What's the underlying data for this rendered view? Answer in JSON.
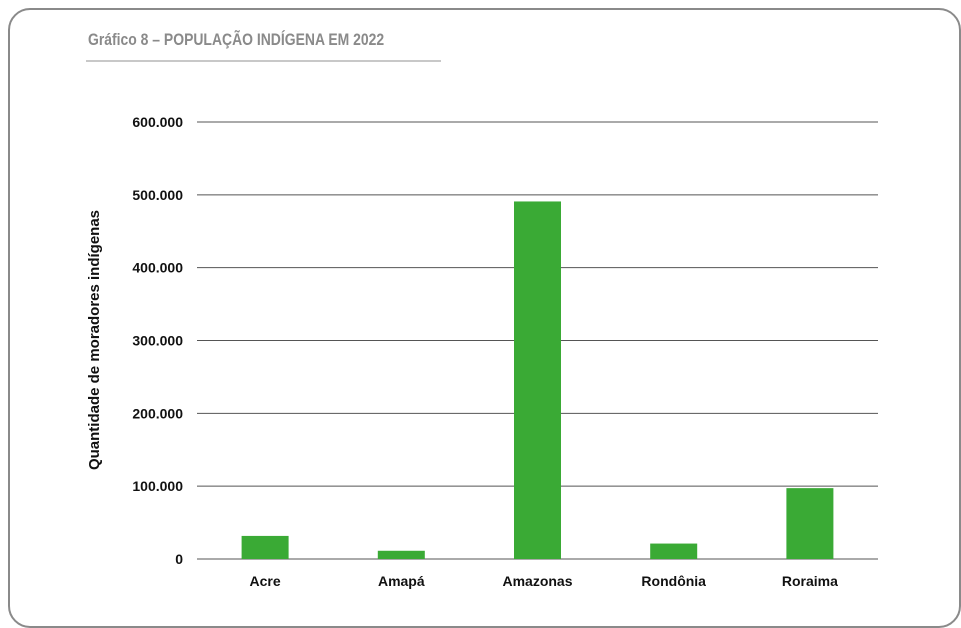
{
  "title": "Gráfico 8 – POPULAÇÃO INDÍGENA EM 2022",
  "colors": {
    "bar": "#3aaa35",
    "grid": "#555555",
    "card_border": "#8a8a8a",
    "title": "#8a8a8a"
  },
  "chart_data": {
    "type": "bar",
    "categories": [
      "Acre",
      "Amapá",
      "Amazonas",
      "Rondônia",
      "Roraima"
    ],
    "values": [
      31700,
      11300,
      490900,
      21200,
      97300
    ],
    "ylabel": "Quantidade de moradores indígenas",
    "xlabel": "",
    "ylim": [
      0,
      600000
    ],
    "yticks": [
      0,
      100000,
      200000,
      300000,
      400000,
      500000,
      600000
    ],
    "ytick_labels": [
      "0",
      "100.000",
      "200.000",
      "300.000",
      "400.000",
      "500.000",
      "600.000"
    ],
    "grid": true,
    "legend": "none"
  }
}
